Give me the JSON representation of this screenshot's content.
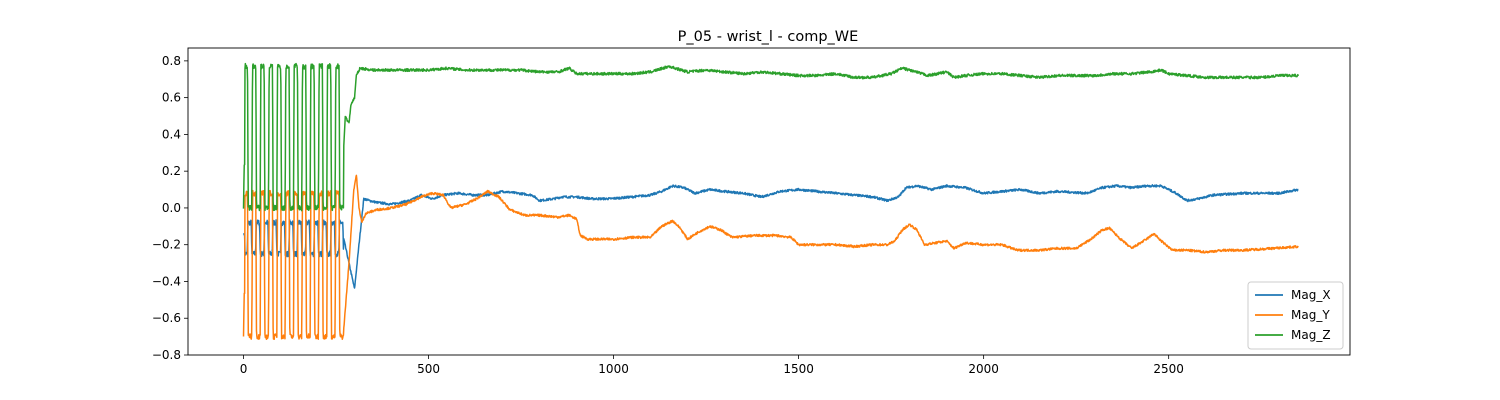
{
  "chart_data": {
    "type": "line",
    "title": "P_05 - wrist_l - comp_WE",
    "xlabel": "",
    "ylabel": "",
    "xlim": [
      -150,
      2990
    ],
    "ylim": [
      -0.8,
      0.87
    ],
    "x_ticks": [
      0,
      500,
      1000,
      1500,
      2000,
      2500
    ],
    "y_ticks": [
      -0.8,
      -0.6,
      -0.4,
      -0.2,
      0.0,
      0.2,
      0.4,
      0.6,
      0.8
    ],
    "grid": false,
    "legend_position": "lower-right",
    "n_points": 2850,
    "oscillation_phase": {
      "x_range": [
        0,
        270
      ],
      "cycles": 12,
      "Mag_X_band": [
        -0.25,
        -0.08
      ],
      "Mag_Y_band": [
        -0.7,
        0.08
      ],
      "Mag_Z_band": [
        0.0,
        0.77
      ]
    },
    "series": [
      {
        "name": "Mag_X",
        "color": "#1f77b4",
        "keypoints": [
          [
            270,
            -0.16
          ],
          [
            300,
            -0.44
          ],
          [
            312,
            -0.2
          ],
          [
            325,
            0.05
          ],
          [
            340,
            0.04
          ],
          [
            360,
            0.03
          ],
          [
            400,
            0.02
          ],
          [
            450,
            0.04
          ],
          [
            480,
            0.07
          ],
          [
            510,
            0.05
          ],
          [
            540,
            0.07
          ],
          [
            580,
            0.08
          ],
          [
            620,
            0.07
          ],
          [
            660,
            0.07
          ],
          [
            700,
            0.09
          ],
          [
            740,
            0.08
          ],
          [
            780,
            0.07
          ],
          [
            800,
            0.04
          ],
          [
            840,
            0.05
          ],
          [
            860,
            0.06
          ],
          [
            900,
            0.06
          ],
          [
            940,
            0.05
          ],
          [
            990,
            0.05
          ],
          [
            1050,
            0.06
          ],
          [
            1100,
            0.07
          ],
          [
            1130,
            0.09
          ],
          [
            1160,
            0.12
          ],
          [
            1190,
            0.11
          ],
          [
            1220,
            0.08
          ],
          [
            1260,
            0.1
          ],
          [
            1300,
            0.09
          ],
          [
            1350,
            0.08
          ],
          [
            1400,
            0.06
          ],
          [
            1450,
            0.09
          ],
          [
            1500,
            0.1
          ],
          [
            1550,
            0.09
          ],
          [
            1600,
            0.08
          ],
          [
            1650,
            0.07
          ],
          [
            1700,
            0.06
          ],
          [
            1740,
            0.04
          ],
          [
            1770,
            0.06
          ],
          [
            1790,
            0.11
          ],
          [
            1820,
            0.12
          ],
          [
            1860,
            0.1
          ],
          [
            1900,
            0.12
          ],
          [
            1950,
            0.11
          ],
          [
            2000,
            0.08
          ],
          [
            2050,
            0.09
          ],
          [
            2100,
            0.1
          ],
          [
            2150,
            0.08
          ],
          [
            2200,
            0.09
          ],
          [
            2280,
            0.08
          ],
          [
            2320,
            0.11
          ],
          [
            2360,
            0.12
          ],
          [
            2400,
            0.11
          ],
          [
            2440,
            0.12
          ],
          [
            2480,
            0.12
          ],
          [
            2520,
            0.08
          ],
          [
            2550,
            0.04
          ],
          [
            2580,
            0.05
          ],
          [
            2620,
            0.07
          ],
          [
            2700,
            0.08
          ],
          [
            2800,
            0.08
          ],
          [
            2850,
            0.1
          ]
        ]
      },
      {
        "name": "Mag_Y",
        "color": "#ff7f0e",
        "keypoints": [
          [
            270,
            -0.68
          ],
          [
            285,
            -0.3
          ],
          [
            298,
            0.1
          ],
          [
            305,
            0.18
          ],
          [
            312,
            0.0
          ],
          [
            320,
            -0.08
          ],
          [
            330,
            -0.03
          ],
          [
            360,
            -0.01
          ],
          [
            400,
            0.0
          ],
          [
            440,
            0.02
          ],
          [
            480,
            0.06
          ],
          [
            510,
            0.08
          ],
          [
            540,
            0.07
          ],
          [
            560,
            0.0
          ],
          [
            600,
            0.02
          ],
          [
            630,
            0.05
          ],
          [
            660,
            0.09
          ],
          [
            690,
            0.06
          ],
          [
            720,
            -0.01
          ],
          [
            760,
            -0.04
          ],
          [
            800,
            -0.04
          ],
          [
            850,
            -0.05
          ],
          [
            880,
            -0.04
          ],
          [
            900,
            -0.06
          ],
          [
            910,
            -0.15
          ],
          [
            930,
            -0.17
          ],
          [
            1000,
            -0.17
          ],
          [
            1050,
            -0.16
          ],
          [
            1100,
            -0.16
          ],
          [
            1130,
            -0.1
          ],
          [
            1160,
            -0.07
          ],
          [
            1180,
            -0.11
          ],
          [
            1200,
            -0.17
          ],
          [
            1230,
            -0.13
          ],
          [
            1260,
            -0.1
          ],
          [
            1290,
            -0.12
          ],
          [
            1320,
            -0.16
          ],
          [
            1380,
            -0.15
          ],
          [
            1440,
            -0.15
          ],
          [
            1480,
            -0.16
          ],
          [
            1500,
            -0.2
          ],
          [
            1550,
            -0.2
          ],
          [
            1600,
            -0.2
          ],
          [
            1650,
            -0.21
          ],
          [
            1700,
            -0.2
          ],
          [
            1740,
            -0.2
          ],
          [
            1760,
            -0.18
          ],
          [
            1780,
            -0.12
          ],
          [
            1800,
            -0.09
          ],
          [
            1820,
            -0.12
          ],
          [
            1840,
            -0.2
          ],
          [
            1870,
            -0.19
          ],
          [
            1900,
            -0.18
          ],
          [
            1920,
            -0.22
          ],
          [
            1950,
            -0.19
          ],
          [
            2000,
            -0.2
          ],
          [
            2050,
            -0.2
          ],
          [
            2090,
            -0.23
          ],
          [
            2150,
            -0.23
          ],
          [
            2200,
            -0.22
          ],
          [
            2250,
            -0.22
          ],
          [
            2290,
            -0.17
          ],
          [
            2320,
            -0.12
          ],
          [
            2340,
            -0.11
          ],
          [
            2370,
            -0.17
          ],
          [
            2400,
            -0.22
          ],
          [
            2440,
            -0.17
          ],
          [
            2460,
            -0.14
          ],
          [
            2480,
            -0.18
          ],
          [
            2510,
            -0.23
          ],
          [
            2550,
            -0.23
          ],
          [
            2600,
            -0.24
          ],
          [
            2650,
            -0.23
          ],
          [
            2700,
            -0.23
          ],
          [
            2780,
            -0.22
          ],
          [
            2850,
            -0.21
          ]
        ]
      },
      {
        "name": "Mag_Z",
        "color": "#2ca02c",
        "keypoints": [
          [
            270,
            0.3
          ],
          [
            275,
            0.5
          ],
          [
            285,
            0.46
          ],
          [
            290,
            0.56
          ],
          [
            300,
            0.6
          ],
          [
            305,
            0.72
          ],
          [
            315,
            0.76
          ],
          [
            350,
            0.75
          ],
          [
            400,
            0.75
          ],
          [
            450,
            0.75
          ],
          [
            500,
            0.75
          ],
          [
            550,
            0.76
          ],
          [
            600,
            0.75
          ],
          [
            650,
            0.75
          ],
          [
            700,
            0.75
          ],
          [
            750,
            0.75
          ],
          [
            800,
            0.74
          ],
          [
            850,
            0.74
          ],
          [
            880,
            0.76
          ],
          [
            900,
            0.73
          ],
          [
            950,
            0.73
          ],
          [
            1000,
            0.73
          ],
          [
            1050,
            0.73
          ],
          [
            1100,
            0.74
          ],
          [
            1150,
            0.77
          ],
          [
            1200,
            0.74
          ],
          [
            1250,
            0.75
          ],
          [
            1300,
            0.74
          ],
          [
            1350,
            0.73
          ],
          [
            1400,
            0.74
          ],
          [
            1450,
            0.73
          ],
          [
            1500,
            0.72
          ],
          [
            1550,
            0.72
          ],
          [
            1600,
            0.73
          ],
          [
            1650,
            0.71
          ],
          [
            1700,
            0.71
          ],
          [
            1750,
            0.73
          ],
          [
            1780,
            0.76
          ],
          [
            1800,
            0.75
          ],
          [
            1850,
            0.72
          ],
          [
            1900,
            0.74
          ],
          [
            1920,
            0.71
          ],
          [
            1950,
            0.72
          ],
          [
            2000,
            0.73
          ],
          [
            2050,
            0.73
          ],
          [
            2100,
            0.72
          ],
          [
            2150,
            0.71
          ],
          [
            2200,
            0.72
          ],
          [
            2250,
            0.72
          ],
          [
            2300,
            0.72
          ],
          [
            2350,
            0.73
          ],
          [
            2400,
            0.73
          ],
          [
            2450,
            0.74
          ],
          [
            2480,
            0.75
          ],
          [
            2500,
            0.73
          ],
          [
            2550,
            0.72
          ],
          [
            2600,
            0.71
          ],
          [
            2650,
            0.71
          ],
          [
            2700,
            0.71
          ],
          [
            2750,
            0.71
          ],
          [
            2800,
            0.72
          ],
          [
            2850,
            0.72
          ]
        ]
      }
    ]
  }
}
